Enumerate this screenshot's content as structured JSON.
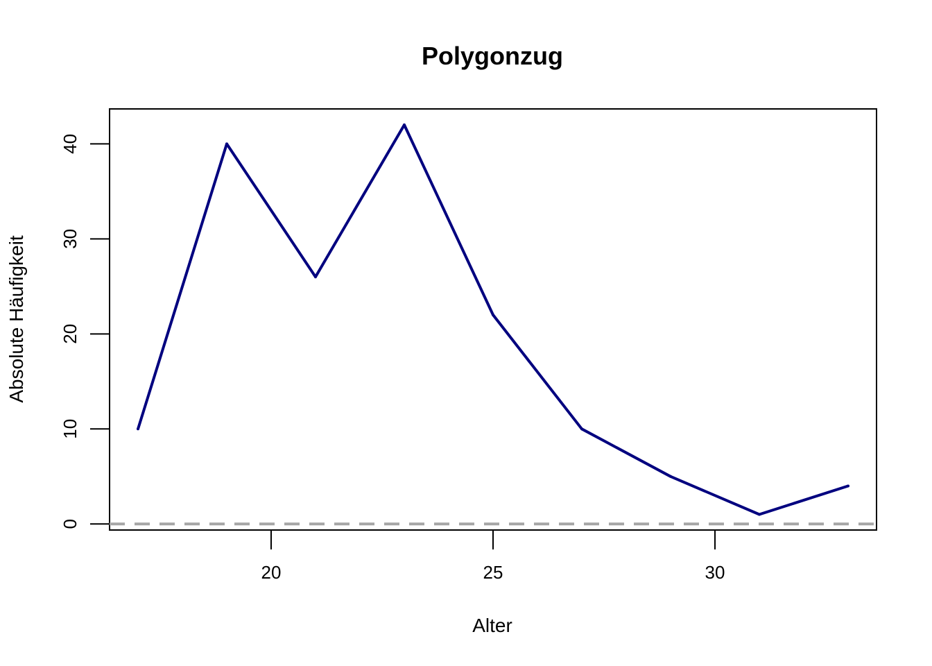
{
  "chart_data": {
    "type": "line",
    "title": "Polygonzug",
    "xlabel": "Alter",
    "ylabel": "Absolute Häufigkeit",
    "x": [
      17,
      19,
      21,
      23,
      25,
      27,
      29,
      31,
      33
    ],
    "y": [
      10,
      40,
      26,
      42,
      22,
      10,
      5,
      1,
      4
    ],
    "xlim": [
      16.36,
      33.64
    ],
    "ylim": [
      -0.64,
      43.68
    ],
    "x_ticks": [
      20,
      25,
      30
    ],
    "y_ticks": [
      0,
      10,
      20,
      30,
      40
    ],
    "line_color": "#00007f",
    "reference_line": {
      "y": 0,
      "style": "dashed",
      "color": "#a6a6a6"
    },
    "grid": false,
    "legend": "none"
  }
}
